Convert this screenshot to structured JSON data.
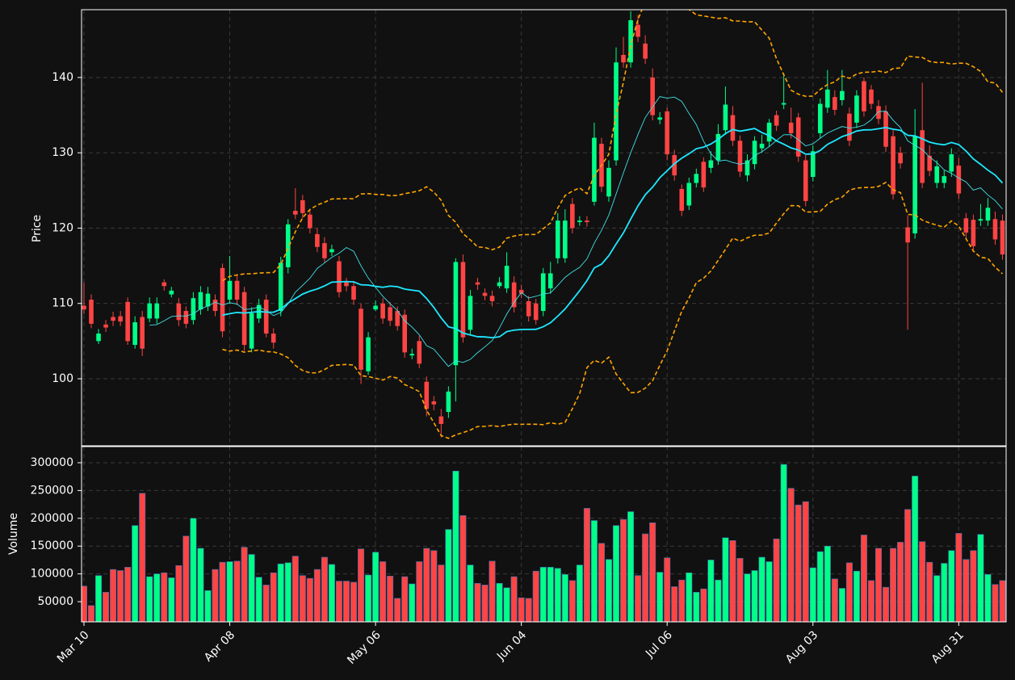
{
  "chart_data": {
    "type": "candlestick",
    "ylabel": "Price",
    "categories": [
      "Mar 10",
      null,
      null,
      null,
      null,
      null,
      null,
      null,
      null,
      null,
      null,
      null,
      null,
      null,
      null,
      null,
      null,
      null,
      null,
      null,
      "Apr 08",
      null,
      null,
      null,
      null,
      null,
      null,
      null,
      null,
      null,
      null,
      null,
      null,
      null,
      null,
      null,
      null,
      null,
      null,
      null,
      "May 06",
      null,
      null,
      null,
      null,
      null,
      null,
      null,
      null,
      null,
      null,
      null,
      null,
      null,
      null,
      null,
      null,
      null,
      null,
      null,
      "Jun 04",
      null,
      null,
      null,
      null,
      null,
      null,
      null,
      null,
      null,
      null,
      null,
      null,
      null,
      null,
      null,
      null,
      null,
      null,
      null,
      "Jul 06",
      null,
      null,
      null,
      null,
      null,
      null,
      null,
      null,
      null,
      null,
      null,
      null,
      null,
      null,
      null,
      null,
      null,
      null,
      null,
      "Aug 03",
      null,
      null,
      null,
      null,
      null,
      null,
      null,
      null,
      null,
      null,
      null,
      null,
      null,
      null,
      null,
      null,
      null,
      null,
      null,
      "Aug 31",
      null,
      null,
      null,
      null,
      null,
      null
    ],
    "open": [
      109.7,
      110.5,
      105,
      107.2,
      108.2,
      108.3,
      110.2,
      104.5,
      108.2,
      108,
      108,
      112.8,
      111.2,
      110,
      109,
      107.8,
      109.2,
      109.6,
      110.5,
      114.7,
      110.5,
      113,
      111.5,
      104,
      108,
      110.5,
      106,
      109,
      114.8,
      122.3,
      123.7,
      121.8,
      119.2,
      118,
      116.8,
      115.6,
      112.8,
      112.3,
      109.3,
      101,
      109.2,
      110,
      109.5,
      109,
      108.5,
      103.1,
      105,
      99.6,
      97,
      95,
      95.6,
      101.8,
      115.5,
      106.5,
      112.8,
      111.4,
      111,
      112.3,
      112,
      112.8,
      111.8,
      110.3,
      110,
      109,
      112,
      116,
      116,
      123.2,
      120.8,
      121,
      123.5,
      131.2,
      124.2,
      129,
      143,
      142,
      147,
      144.5,
      140,
      134.4,
      135.5,
      129.7,
      125.2,
      123,
      126,
      128.8,
      128,
      129,
      133,
      135,
      131.6,
      127,
      128.5,
      130.6,
      131.5,
      135,
      136.4,
      134,
      134.7,
      129,
      126.8,
      132.6,
      136,
      137.4,
      137,
      135.2,
      134,
      139.5,
      138.4,
      136.2,
      135.5,
      132.2,
      130,
      120.1,
      119.3,
      133,
      129.6,
      126,
      126,
      127.5,
      128.3,
      121.3,
      121.1,
      121,
      121,
      121.2,
      121
    ],
    "high": [
      112.8,
      111.2,
      106.6,
      107.8,
      108.9,
      109,
      110.8,
      108.3,
      109,
      110.8,
      110.8,
      113.2,
      112.2,
      110.7,
      109.6,
      111.5,
      112.3,
      112.2,
      111.2,
      115.3,
      116.3,
      113.8,
      112.2,
      109.5,
      110.6,
      111.2,
      106.7,
      116.2,
      121.2,
      125.3,
      124.4,
      122.5,
      120,
      118.8,
      117.8,
      116.3,
      113.4,
      113,
      110,
      106.2,
      110.4,
      110.7,
      110.2,
      109.6,
      109.2,
      104,
      105.7,
      100.3,
      97.7,
      96,
      99,
      116,
      116.5,
      111.8,
      113.4,
      112,
      111.7,
      113.5,
      116.8,
      113.6,
      112.5,
      111,
      110.6,
      114.7,
      115.5,
      122,
      122.5,
      124,
      121.6,
      121.6,
      134,
      132,
      129,
      144,
      145.4,
      148.8,
      148.3,
      145.6,
      141.2,
      135.4,
      136,
      130.4,
      125.8,
      126.7,
      127.9,
      129.4,
      130.2,
      133.8,
      138.8,
      136.2,
      132.3,
      129.8,
      132.2,
      132.4,
      134.5,
      135.6,
      140.5,
      136,
      135.3,
      129.7,
      131,
      137.2,
      141,
      138.3,
      141,
      136,
      138.3,
      140,
      139,
      137,
      136.3,
      133,
      130.8,
      121.7,
      135.8,
      139.3,
      131,
      129,
      127.7,
      130.6,
      129.3,
      122,
      121.8,
      123.2,
      124,
      122.2,
      121.8
    ],
    "low": [
      108.6,
      106.7,
      104.6,
      106.2,
      107,
      107,
      104.5,
      104,
      103,
      107.5,
      107.3,
      111.7,
      110.8,
      107,
      106.7,
      107.2,
      108.5,
      109,
      108.3,
      105.5,
      110,
      109.8,
      103.7,
      103.5,
      107.4,
      105.5,
      104,
      108.3,
      114,
      121.2,
      121.3,
      119.3,
      116.8,
      115.4,
      116.3,
      110.8,
      111.6,
      109.8,
      99.3,
      100.5,
      109,
      107.3,
      107,
      106.4,
      102.8,
      102.6,
      101.4,
      95,
      95.8,
      92.2,
      94.8,
      97,
      104.8,
      105.8,
      111.8,
      110.4,
      109.6,
      112,
      111.4,
      108.8,
      110.7,
      107.6,
      107.2,
      108.3,
      111.3,
      115.3,
      115.4,
      119.3,
      120.3,
      120.2,
      123,
      124.8,
      123.5,
      128.3,
      141.3,
      141.3,
      144.7,
      141.8,
      134.3,
      133.8,
      129,
      126.3,
      121.6,
      122.4,
      125.4,
      124.8,
      127.3,
      128.4,
      132.4,
      130.9,
      126.8,
      126.2,
      127.8,
      130,
      130.8,
      132.9,
      135.8,
      131.9,
      128.8,
      122.9,
      126.2,
      131.9,
      135.3,
      135,
      136.3,
      130.9,
      133.3,
      134.8,
      135.8,
      133.8,
      130.1,
      123.8,
      127.9,
      106.5,
      118.6,
      125.3,
      126.9,
      125.3,
      125.3,
      126.8,
      123.9,
      118.7,
      116.9,
      120.3,
      120.3,
      117.8,
      115.8
    ],
    "close": [
      109.2,
      107.3,
      106,
      106.8,
      107.7,
      107.6,
      105,
      107.5,
      104,
      110,
      110,
      112.3,
      111.7,
      107.8,
      107.3,
      110.7,
      111.5,
      111.3,
      109,
      106.3,
      113,
      110.5,
      104.5,
      108.7,
      109.8,
      106,
      104.8,
      115.4,
      120.5,
      121.8,
      122,
      120,
      117.5,
      116,
      117.2,
      111.5,
      112.3,
      110.5,
      101.2,
      105.5,
      109.7,
      108,
      107.7,
      107,
      103.5,
      103.3,
      102,
      96,
      96.6,
      94,
      98.3,
      115.5,
      105.5,
      111,
      112.5,
      111,
      110.3,
      112.8,
      115,
      109.5,
      111.3,
      108.3,
      107.8,
      114,
      114,
      121,
      121,
      120,
      121,
      120.8,
      132,
      125.5,
      128,
      142,
      142,
      147.6,
      145.4,
      142.5,
      135,
      134.7,
      129.8,
      127,
      122.3,
      126,
      127.2,
      125.4,
      129,
      132.5,
      136.4,
      131.6,
      127.5,
      129,
      131.6,
      131.2,
      134,
      133.6,
      136.6,
      132.6,
      129.5,
      123.6,
      130.2,
      136.5,
      138.4,
      135.7,
      138.2,
      131.6,
      137.6,
      135.5,
      136.5,
      134.5,
      130.8,
      124.5,
      128.6,
      118.1,
      132.2,
      126,
      127.6,
      128.2,
      126.9,
      129.8,
      124.6,
      119.4,
      117.6,
      121.2,
      122.7,
      118.5,
      116.5
    ],
    "ylim": [
      91.1,
      149
    ],
    "yticks": [
      100,
      110,
      120,
      130,
      140
    ],
    "grid": true,
    "up_color": "#00ff88",
    "down_color": "#ff4444",
    "moving_averages": [
      10,
      20
    ],
    "ma_colors": [
      "#40e0e8",
      "#1ee8ff"
    ],
    "bollinger": {
      "period": 20,
      "k": 2,
      "color": "#ffa500"
    },
    "volume": {
      "ylabel": "Volume",
      "values": [
        78000,
        43000,
        97000,
        67000,
        108000,
        106000,
        112000,
        187000,
        245000,
        95000,
        100000,
        102000,
        93000,
        115000,
        168000,
        200000,
        146000,
        70000,
        108000,
        121000,
        122000,
        123000,
        148000,
        135000,
        94000,
        80000,
        102000,
        118000,
        120000,
        132000,
        97000,
        92000,
        108000,
        130000,
        117000,
        87000,
        87000,
        85000,
        145000,
        98000,
        139000,
        122000,
        96000,
        56000,
        95000,
        82000,
        122000,
        146000,
        142000,
        116000,
        180000,
        285000,
        205000,
        116000,
        83000,
        80000,
        123000,
        83000,
        75000,
        95000,
        57000,
        56000,
        105000,
        112000,
        112000,
        110000,
        99000,
        88000,
        116000,
        218000,
        196000,
        155000,
        126000,
        187000,
        198000,
        212000,
        97000,
        172000,
        192000,
        103000,
        129000,
        77000,
        89000,
        102000,
        67000,
        73000,
        125000,
        89000,
        165000,
        160000,
        128000,
        100000,
        106000,
        130000,
        122000,
        163000,
        297000,
        254000,
        224000,
        230000,
        111000,
        140000,
        150000,
        91000,
        74000,
        120000,
        105000,
        170000,
        88000,
        146000,
        76000,
        146000,
        157000,
        216000,
        276000,
        158000,
        121000,
        97000,
        119000,
        142000,
        173000,
        126000,
        142000,
        171000,
        99000,
        81000,
        88000
      ],
      "ylim": [
        13700,
        329000
      ],
      "yticks": [
        50000,
        100000,
        150000,
        200000,
        250000,
        300000
      ]
    }
  }
}
